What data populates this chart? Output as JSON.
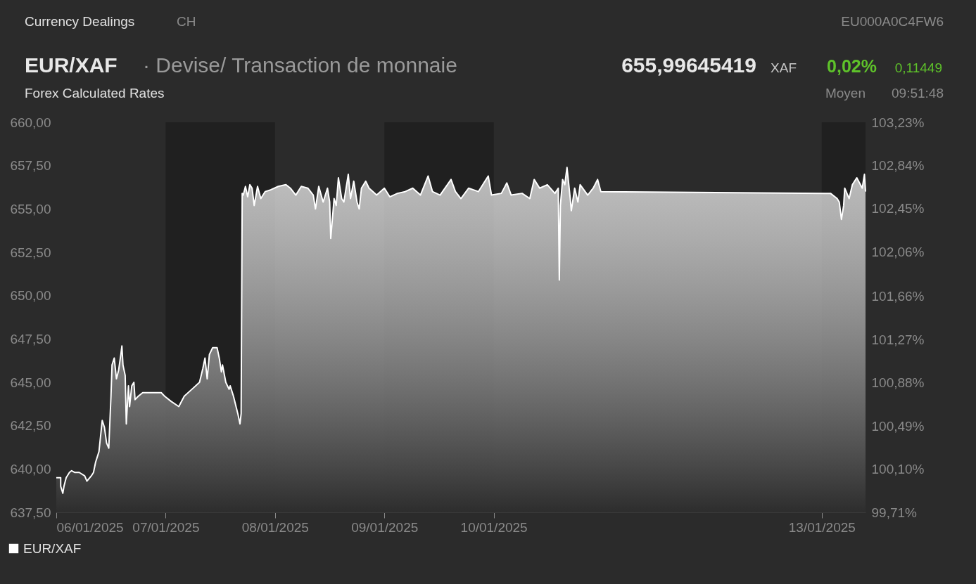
{
  "chart_data": {
    "type": "area",
    "title": "EUR/XAF",
    "subtitle": "· Devise/ Transaction de monnaie",
    "annotations": [
      "Currency Dealings",
      "CH",
      "EU000A0C4FW6",
      "655,99645419",
      "XAF",
      "0,02%",
      "0,11449",
      "Forex Calculated Rates",
      "Moyen",
      "09:51:48"
    ],
    "xlim": [
      "2025-01-06T00:00",
      "2025-01-13T09:36"
    ],
    "xticks": [
      {
        "value": "2025-01-06",
        "label": "06/01/2025"
      },
      {
        "value": "2025-01-07",
        "label": "07/01/2025"
      },
      {
        "value": "2025-01-08",
        "label": "08/01/2025"
      },
      {
        "value": "2025-01-09",
        "label": "09/01/2025"
      },
      {
        "value": "2025-01-10",
        "label": "10/01/2025"
      },
      {
        "value": "2025-01-13",
        "label": "13/01/2025"
      }
    ],
    "ylim": [
      637.5,
      660
    ],
    "yticks": [
      {
        "value": 637.5,
        "label": "637,50"
      },
      {
        "value": 640,
        "label": "640,00"
      },
      {
        "value": 642.5,
        "label": "642,50"
      },
      {
        "value": 645,
        "label": "645,00"
      },
      {
        "value": 647.5,
        "label": "647,50"
      },
      {
        "value": 650,
        "label": "650,00"
      },
      {
        "value": 652.5,
        "label": "652,50"
      },
      {
        "value": 655,
        "label": "655,00"
      },
      {
        "value": 657.5,
        "label": "657,50"
      },
      {
        "value": 660,
        "label": "660,00"
      }
    ],
    "y2lim": [
      99.71,
      103.23
    ],
    "y2ticks": [
      {
        "value": 99.71,
        "label": "99,71%"
      },
      {
        "value": 100.1,
        "label": "100,10%"
      },
      {
        "value": 100.49,
        "label": "100,49%"
      },
      {
        "value": 100.88,
        "label": "100,88%"
      },
      {
        "value": 101.27,
        "label": "101,27%"
      },
      {
        "value": 101.66,
        "label": "101,66%"
      },
      {
        "value": 102.06,
        "label": "102,06%"
      },
      {
        "value": 102.45,
        "label": "102,45%"
      },
      {
        "value": 102.84,
        "label": "102,84%"
      },
      {
        "value": 103.23,
        "label": "103,23%"
      }
    ],
    "bands": [
      {
        "axis": "x",
        "from": "2025-01-07",
        "to": "2025-01-08",
        "color": "#202020"
      },
      {
        "axis": "x",
        "from": "2025-01-09",
        "to": "2025-01-10",
        "color": "#202020"
      },
      {
        "axis": "x",
        "from": "2025-01-13",
        "to": "2025-01-13T09:36",
        "color": "#202020"
      }
    ],
    "legend": "bottom left",
    "grid": false,
    "series": [
      {
        "name": "EUR/XAF",
        "color": "#ffffff",
        "x": [
          "2025-01-06T00:00",
          "2025-01-06T00:58",
          "2025-01-06T00:58",
          "2025-01-06T01:26",
          "2025-01-06T01:41",
          "2025-01-06T02:10",
          "2025-01-06T02:53",
          "2025-01-06T03:22",
          "2025-01-06T04:05",
          "2025-01-06T05:02",
          "2025-01-06T06:14",
          "2025-01-06T06:43",
          "2025-01-06T07:41",
          "2025-01-06T08:10",
          "2025-01-06T08:38",
          "2025-01-06T09:22",
          "2025-01-06T09:36",
          "2025-01-06T10:05",
          "2025-01-06T10:34",
          "2025-01-06T11:02",
          "2025-01-06T11:31",
          "2025-01-06T12:00",
          "2025-01-06T12:14",
          "2025-01-06T12:43",
          "2025-01-06T13:12",
          "2025-01-06T13:41",
          "2025-01-06T14:10",
          "2025-01-06T14:24",
          "2025-01-06T14:38",
          "2025-01-06T15:07",
          "2025-01-06T15:22",
          "2025-01-06T15:50",
          "2025-01-06T16:05",
          "2025-01-06T16:34",
          "2025-01-06T17:02",
          "2025-01-06T17:17",
          "2025-01-06T18:00",
          "2025-01-06T18:58",
          "2025-01-06T20:38",
          "2025-01-06T23:02",
          "2025-01-06T23:46",
          "2025-01-07T01:12",
          "2025-01-07T02:53",
          "2025-01-07T04:05",
          "2025-01-07T05:46",
          "2025-01-07T07:26",
          "2025-01-07T08:10",
          "2025-01-07T08:38",
          "2025-01-07T09:07",
          "2025-01-07T09:36",
          "2025-01-07T10:19",
          "2025-01-07T11:17",
          "2025-01-07T11:46",
          "2025-01-07T12:14",
          "2025-01-07T12:29",
          "2025-01-07T13:12",
          "2025-01-07T13:55",
          "2025-01-07T14:10",
          "2025-01-07T14:53",
          "2025-01-07T15:50",
          "2025-01-07T16:19",
          "2025-01-07T16:34",
          "2025-01-07T16:48",
          "2025-01-07T17:02",
          "2025-01-07T17:31",
          "2025-01-07T18:00",
          "2025-01-07T18:29",
          "2025-01-07T18:58",
          "2025-01-07T19:26",
          "2025-01-07T20:10",
          "2025-01-07T20:53",
          "2025-01-07T21:50",
          "2025-01-07T23:02",
          "2025-01-08T00:43",
          "2025-01-08T02:24",
          "2025-01-08T03:22",
          "2025-01-08T04:34",
          "2025-01-08T05:46",
          "2025-01-08T07:12",
          "2025-01-08T08:24",
          "2025-01-08T08:53",
          "2025-01-08T09:36",
          "2025-01-08T10:34",
          "2025-01-08T11:31",
          "2025-01-08T12:00",
          "2025-01-08T12:14",
          "2025-01-08T12:58",
          "2025-01-08T13:26",
          "2025-01-08T13:55",
          "2025-01-08T14:38",
          "2025-01-08T15:07",
          "2025-01-08T16:05",
          "2025-01-08T16:34",
          "2025-01-08T17:17",
          "2025-01-08T18:00",
          "2025-01-08T18:29",
          "2025-01-08T18:58",
          "2025-01-08T19:55",
          "2025-01-08T20:38",
          "2025-01-08T22:19",
          "2025-01-09T00:00",
          "2025-01-09T01:12",
          "2025-01-09T02:53",
          "2025-01-09T04:34",
          "2025-01-09T06:14",
          "2025-01-09T07:55",
          "2025-01-09T09:36",
          "2025-01-09T10:34",
          "2025-01-09T12:14",
          "2025-01-09T14:38",
          "2025-01-09T15:36",
          "2025-01-09T16:48",
          "2025-01-09T18:29",
          "2025-01-09T20:38",
          "2025-01-09T22:48",
          "2025-01-09T23:31",
          "2025-01-10T01:41",
          "2025-01-10T02:53",
          "2025-01-10T03:50",
          "2025-01-10T06:14",
          "2025-01-10T07:55",
          "2025-01-10T08:53",
          "2025-01-10T10:05",
          "2025-01-10T11:46",
          "2025-01-10T13:26",
          "2025-01-10T14:10",
          "2025-01-10T14:24",
          "2025-01-10T14:38",
          "2025-01-10T15:07",
          "2025-01-10T15:36",
          "2025-01-10T16:05",
          "2025-01-10T16:48",
          "2025-01-10T17:02",
          "2025-01-10T17:46",
          "2025-01-10T18:29",
          "2025-01-10T18:58",
          "2025-01-10T20:38",
          "2025-01-10T21:50",
          "2025-01-10T22:48",
          "2025-01-10T23:31",
          "2025-01-13T00:43",
          "2025-01-13T01:55",
          "2025-01-13T03:22",
          "2025-01-13T03:50",
          "2025-01-13T04:19",
          "2025-01-13T04:48",
          "2025-01-13T05:02",
          "2025-01-13T06:00",
          "2025-01-13T06:43",
          "2025-01-13T07:41",
          "2025-01-13T08:53",
          "2025-01-13T09:22",
          "2025-01-13T09:36"
        ],
        "values": [
          639.5,
          639.5,
          639.0,
          638.6,
          639.0,
          639.5,
          639.8,
          639.9,
          639.8,
          639.8,
          639.6,
          639.3,
          639.6,
          639.8,
          640.4,
          641.0,
          641.6,
          642.8,
          642.4,
          641.5,
          641.2,
          644.2,
          646.0,
          646.4,
          645.2,
          645.7,
          646.6,
          647.1,
          646.0,
          645.4,
          642.6,
          644.8,
          643.6,
          644.8,
          645.0,
          644.0,
          644.2,
          644.4,
          644.4,
          644.4,
          644.2,
          643.9,
          643.6,
          644.2,
          644.6,
          645.0,
          645.8,
          646.4,
          645.2,
          646.6,
          647.0,
          647.0,
          646.4,
          645.6,
          646.0,
          645.0,
          644.6,
          644.8,
          644.2,
          643.2,
          642.6,
          643.2,
          655.9,
          655.8,
          656.3,
          655.7,
          656.4,
          656.2,
          655.2,
          656.3,
          655.6,
          656.0,
          656.1,
          656.3,
          656.4,
          656.2,
          655.8,
          656.3,
          656.2,
          655.8,
          655.0,
          656.3,
          655.4,
          656.2,
          655.4,
          653.3,
          655.6,
          655.2,
          656.8,
          655.6,
          655.4,
          657.0,
          655.6,
          656.6,
          655.4,
          655.0,
          656.2,
          656.6,
          656.2,
          655.8,
          656.2,
          655.7,
          655.9,
          656.0,
          656.2,
          655.8,
          656.9,
          656.0,
          655.8,
          656.7,
          656.0,
          655.6,
          656.2,
          656.0,
          656.9,
          655.8,
          655.9,
          656.5,
          655.8,
          655.9,
          655.6,
          656.7,
          656.2,
          656.4,
          655.9,
          656.2,
          650.9,
          655.2,
          656.7,
          656.4,
          657.4,
          655.6,
          654.9,
          656.2,
          655.4,
          656.4,
          655.8,
          656.2,
          656.7,
          656.0,
          655.9,
          655.9,
          655.6,
          655.4,
          654.4,
          655.2,
          656.2,
          655.6,
          656.4,
          656.8,
          656.2,
          657.0,
          656.0
        ]
      }
    ]
  }
}
